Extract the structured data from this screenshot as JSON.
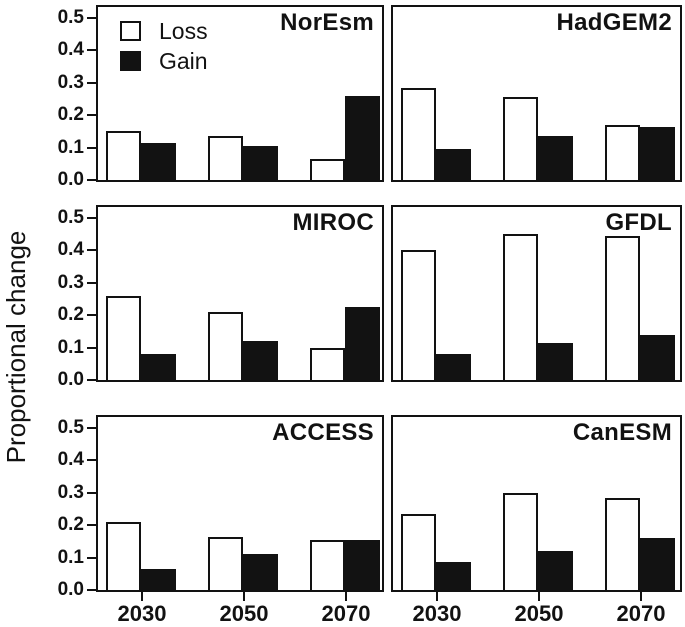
{
  "figure": {
    "ylabel": "Proportional change",
    "colors": {
      "ink": "#121212",
      "loss_fill": "#ffffff",
      "gain_fill": "#121212",
      "background": "#ffffff"
    }
  },
  "chart_data": {
    "type": "bar",
    "title": "",
    "ylabel": "Proportional change",
    "xlabel": "",
    "categories": [
      "2030",
      "2050",
      "2070"
    ],
    "ylim": [
      0,
      0.55
    ],
    "yticks": [
      "0.0",
      "0.1",
      "0.2",
      "0.3",
      "0.4",
      "0.5"
    ],
    "grid": false,
    "legend_position": "top-left of first panel",
    "legend": [
      {
        "name": "Loss",
        "fill": "#ffffff"
      },
      {
        "name": "Gain",
        "fill": "#121212"
      }
    ],
    "panels": [
      {
        "title": "NorEsm",
        "series": [
          {
            "name": "Loss",
            "values": [
              0.15,
              0.135,
              0.065
            ]
          },
          {
            "name": "Gain",
            "values": [
              0.115,
              0.105,
              0.26
            ]
          }
        ]
      },
      {
        "title": "HadGEM2",
        "series": [
          {
            "name": "Loss",
            "values": [
              0.285,
              0.255,
              0.17
            ]
          },
          {
            "name": "Gain",
            "values": [
              0.095,
              0.135,
              0.165
            ]
          }
        ]
      },
      {
        "title": "MIROC",
        "series": [
          {
            "name": "Loss",
            "values": [
              0.26,
              0.21,
              0.1
            ]
          },
          {
            "name": "Gain",
            "values": [
              0.08,
              0.12,
              0.225
            ]
          }
        ]
      },
      {
        "title": "GFDL",
        "series": [
          {
            "name": "Loss",
            "values": [
              0.4,
              0.45,
              0.445
            ]
          },
          {
            "name": "Gain",
            "values": [
              0.08,
              0.115,
              0.14
            ]
          }
        ]
      },
      {
        "title": "ACCESS",
        "series": [
          {
            "name": "Loss",
            "values": [
              0.21,
              0.165,
              0.155
            ]
          },
          {
            "name": "Gain",
            "values": [
              0.065,
              0.11,
              0.155
            ]
          }
        ]
      },
      {
        "title": "CanESM",
        "series": [
          {
            "name": "Loss",
            "values": [
              0.235,
              0.3,
              0.285
            ]
          },
          {
            "name": "Gain",
            "values": [
              0.085,
              0.12,
              0.16
            ]
          }
        ]
      }
    ]
  }
}
